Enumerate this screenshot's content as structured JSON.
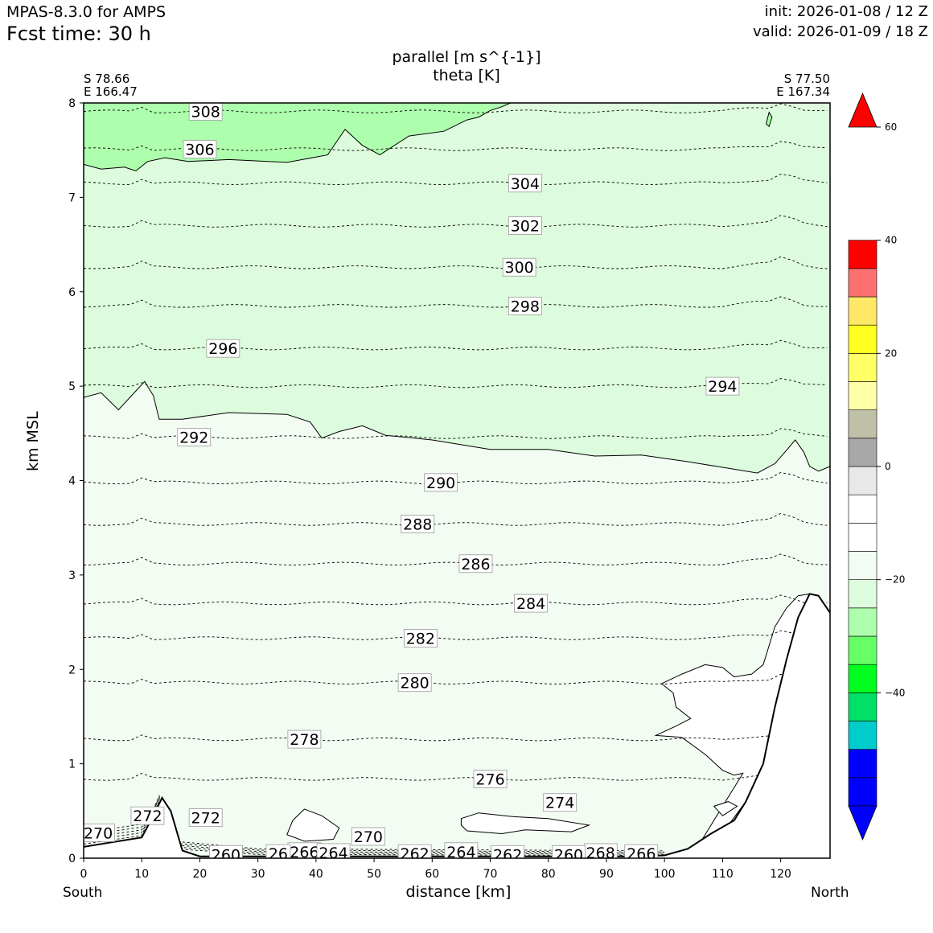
{
  "header": {
    "model": "MPAS-8.3.0 for AMPS",
    "fcst_time": "Fcst time:   30 h",
    "init": "init: 2026-01-08 / 12 Z",
    "valid": "valid: 2026-01-09 / 18 Z"
  },
  "chart_data": {
    "type": "contour",
    "title": [
      "parallel [m s^{-1}]",
      "theta [K]"
    ],
    "xlabel": "distance [km]",
    "ylabel": "km MSL",
    "xlim": [
      0,
      128.5
    ],
    "ylim": [
      0,
      8
    ],
    "x_ticks": [
      0,
      10,
      20,
      30,
      40,
      50,
      60,
      70,
      80,
      90,
      100,
      110,
      120
    ],
    "y_ticks": [
      0,
      1,
      2,
      3,
      4,
      5,
      6,
      7,
      8
    ],
    "start_point": {
      "lat": "S 78.66",
      "lon": "E 166.47"
    },
    "end_point": {
      "lat": "S 77.50",
      "lon": "E 167.34"
    },
    "left_end_label": "South",
    "right_end_label": "North",
    "colorbar": {
      "ticks": [
        60,
        40,
        20,
        0,
        -20,
        -40
      ],
      "levels": [
        -60,
        -55,
        -50,
        -45,
        -40,
        -35,
        -30,
        -25,
        -20,
        -15,
        -10,
        -5,
        0,
        5,
        10,
        15,
        20,
        25,
        30,
        35,
        40,
        45,
        50,
        55,
        60
      ],
      "colors": [
        "#0000ff",
        "#0000ff",
        "#00cccc",
        "#00e066",
        "#00ff1f",
        "#66ff66",
        "#adffad",
        "#ddfcdd",
        "#f2fcf2",
        "#ffffff",
        "#ffffff",
        "#e8e8e8",
        "#a8a8a8",
        "#c0bfa8",
        "#ffffa8",
        "#ffff66",
        "#ffff1f",
        "#ffe866",
        "#ff7070",
        "#ff0000",
        "#ff0000"
      ],
      "extend_min_color": "#0000ff",
      "extend_max_color": "#ff0000"
    },
    "wind_regions": [
      {
        "value_range": [
          -20,
          -15
        ],
        "color": "#adffad",
        "location": "top-left, above ~7.4 km"
      },
      {
        "value_range": [
          -15,
          -10
        ],
        "color": "#ddfcdd",
        "location": "above ~4.3-4.9 km"
      },
      {
        "value_range": [
          -10,
          -5
        ],
        "color": "#f2fcf2",
        "location": "lower troposphere"
      },
      {
        "value_range": [
          -5,
          0
        ],
        "color": "#ffffff",
        "location": "near terrain and lee side"
      }
    ],
    "theta_contours": [
      {
        "value": 308,
        "x": 21,
        "y": 7.91
      },
      {
        "value": 306,
        "x": 20,
        "y": 7.51
      },
      {
        "value": 304,
        "x": 76,
        "y": 7.15
      },
      {
        "value": 302,
        "x": 76,
        "y": 6.7
      },
      {
        "value": 300,
        "x": 75,
        "y": 6.26
      },
      {
        "value": 298,
        "x": 76,
        "y": 5.85
      },
      {
        "value": 296,
        "x": 24,
        "y": 5.4
      },
      {
        "value": 294,
        "x": 110,
        "y": 5.0
      },
      {
        "value": 292,
        "x": 19,
        "y": 4.46
      },
      {
        "value": 290,
        "x": 61.5,
        "y": 3.98
      },
      {
        "value": 288,
        "x": 57.5,
        "y": 3.54
      },
      {
        "value": 286,
        "x": 67.5,
        "y": 3.12
      },
      {
        "value": 284,
        "x": 77,
        "y": 2.7
      },
      {
        "value": 282,
        "x": 58,
        "y": 2.33
      },
      {
        "value": 280,
        "x": 57,
        "y": 1.86
      },
      {
        "value": 278,
        "x": 38,
        "y": 1.26
      },
      {
        "value": 276,
        "x": 70,
        "y": 0.84
      },
      {
        "value": 274,
        "x": 82,
        "y": 0.59
      },
      {
        "value": 272,
        "x": 21,
        "y": 0.43
      },
      {
        "value": 272,
        "x": 11,
        "y": 0.45
      },
      {
        "value": 270,
        "x": 2.5,
        "y": 0.27
      },
      {
        "value": 270,
        "x": 49,
        "y": 0.23
      },
      {
        "value": 268,
        "x": 89,
        "y": 0.06
      },
      {
        "value": 266,
        "x": 38,
        "y": 0.07
      },
      {
        "value": 266,
        "x": 96,
        "y": 0.05
      },
      {
        "value": 264,
        "x": 43,
        "y": 0.06
      },
      {
        "value": 264,
        "x": 65,
        "y": 0.07
      },
      {
        "value": 262,
        "x": 57,
        "y": 0.05
      },
      {
        "value": 262,
        "x": 73,
        "y": 0.04
      },
      {
        "value": 260,
        "x": 24.5,
        "y": 0.04
      },
      {
        "value": 260,
        "x": 83.5,
        "y": 0.04
      },
      {
        "value": 26,
        "x": 33.5,
        "y": 0.05
      }
    ],
    "terrain": [
      [
        0,
        0.12
      ],
      [
        10,
        0.22
      ],
      [
        12,
        0.45
      ],
      [
        13.5,
        0.64
      ],
      [
        15,
        0.5
      ],
      [
        17,
        0.08
      ],
      [
        20,
        0.02
      ],
      [
        30,
        0.02
      ],
      [
        60,
        0.02
      ],
      [
        95,
        0.02
      ],
      [
        100,
        0.03
      ],
      [
        104,
        0.1
      ],
      [
        108,
        0.26
      ],
      [
        112,
        0.4
      ],
      [
        114,
        0.6
      ],
      [
        117,
        1.0
      ],
      [
        119,
        1.6
      ],
      [
        121,
        2.1
      ],
      [
        123,
        2.55
      ],
      [
        125,
        2.8
      ],
      [
        126.5,
        2.78
      ],
      [
        128.5,
        2.6
      ]
    ]
  }
}
